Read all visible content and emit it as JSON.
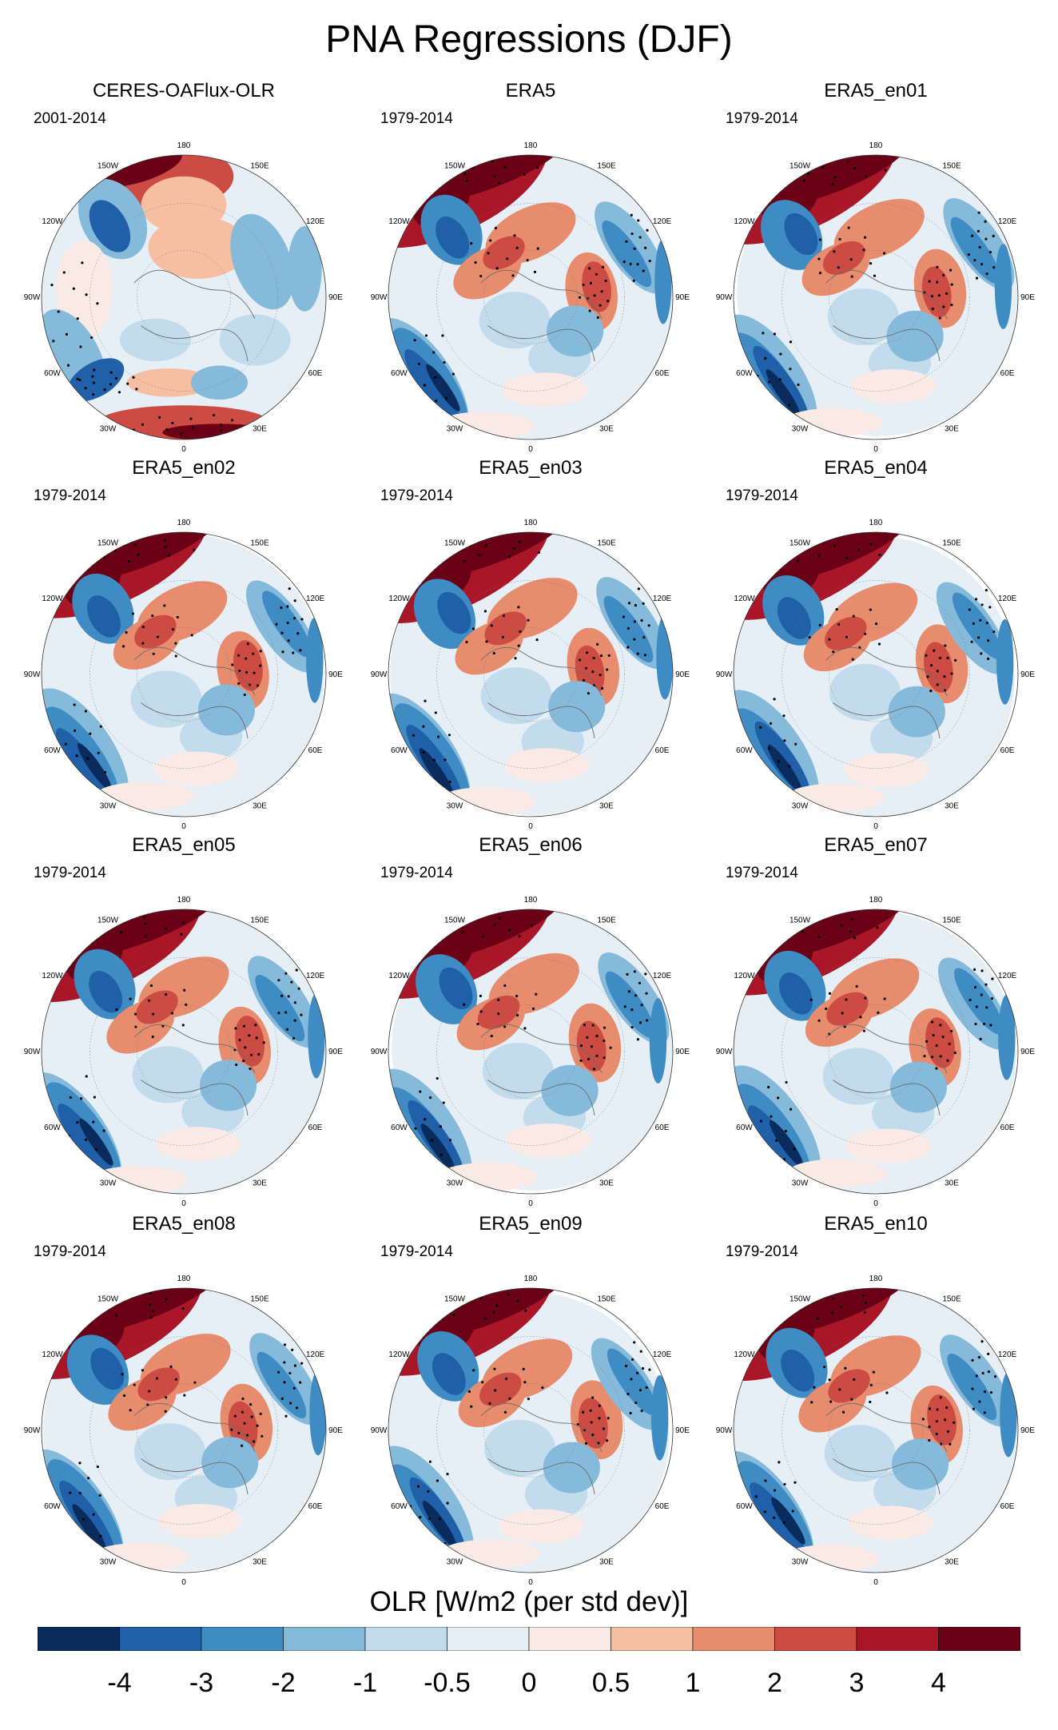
{
  "title": "PNA Regressions (DJF)",
  "chart_data": {
    "type": "heatmap",
    "projection": "north-polar-stereographic",
    "variable_label": "OLR [W/m2 (per std dev)]",
    "colorbar": {
      "colors": [
        "#0a2c5c",
        "#1f60a8",
        "#3f8cc5",
        "#86bada",
        "#c3dced",
        "#e6eff6",
        "#faeae6",
        "#f6bfa2",
        "#e78d6e",
        "#cc4c43",
        "#a81628",
        "#6a0116"
      ],
      "ticks": [
        "-4",
        "-3",
        "-2",
        "-1",
        "-0.5",
        "0",
        "0.5",
        "1",
        "2",
        "3",
        "4"
      ]
    },
    "longitude_labels": [
      "180",
      "150E",
      "120E",
      "90E",
      "60E",
      "30E",
      "0",
      "30W",
      "60W",
      "90W",
      "120W",
      "150W"
    ],
    "panels": [
      {
        "title": "CERES-OAFlux-OLR",
        "period": "2001-2014"
      },
      {
        "title": "ERA5",
        "period": "1979-2014"
      },
      {
        "title": "ERA5_en01",
        "period": "1979-2014"
      },
      {
        "title": "ERA5_en02",
        "period": "1979-2014"
      },
      {
        "title": "ERA5_en03",
        "period": "1979-2014"
      },
      {
        "title": "ERA5_en04",
        "period": "1979-2014"
      },
      {
        "title": "ERA5_en05",
        "period": "1979-2014"
      },
      {
        "title": "ERA5_en06",
        "period": "1979-2014"
      },
      {
        "title": "ERA5_en07",
        "period": "1979-2014"
      },
      {
        "title": "ERA5_en08",
        "period": "1979-2014"
      },
      {
        "title": "ERA5_en09",
        "period": "1979-2014"
      },
      {
        "title": "ERA5_en10",
        "period": "1979-2014"
      }
    ]
  }
}
